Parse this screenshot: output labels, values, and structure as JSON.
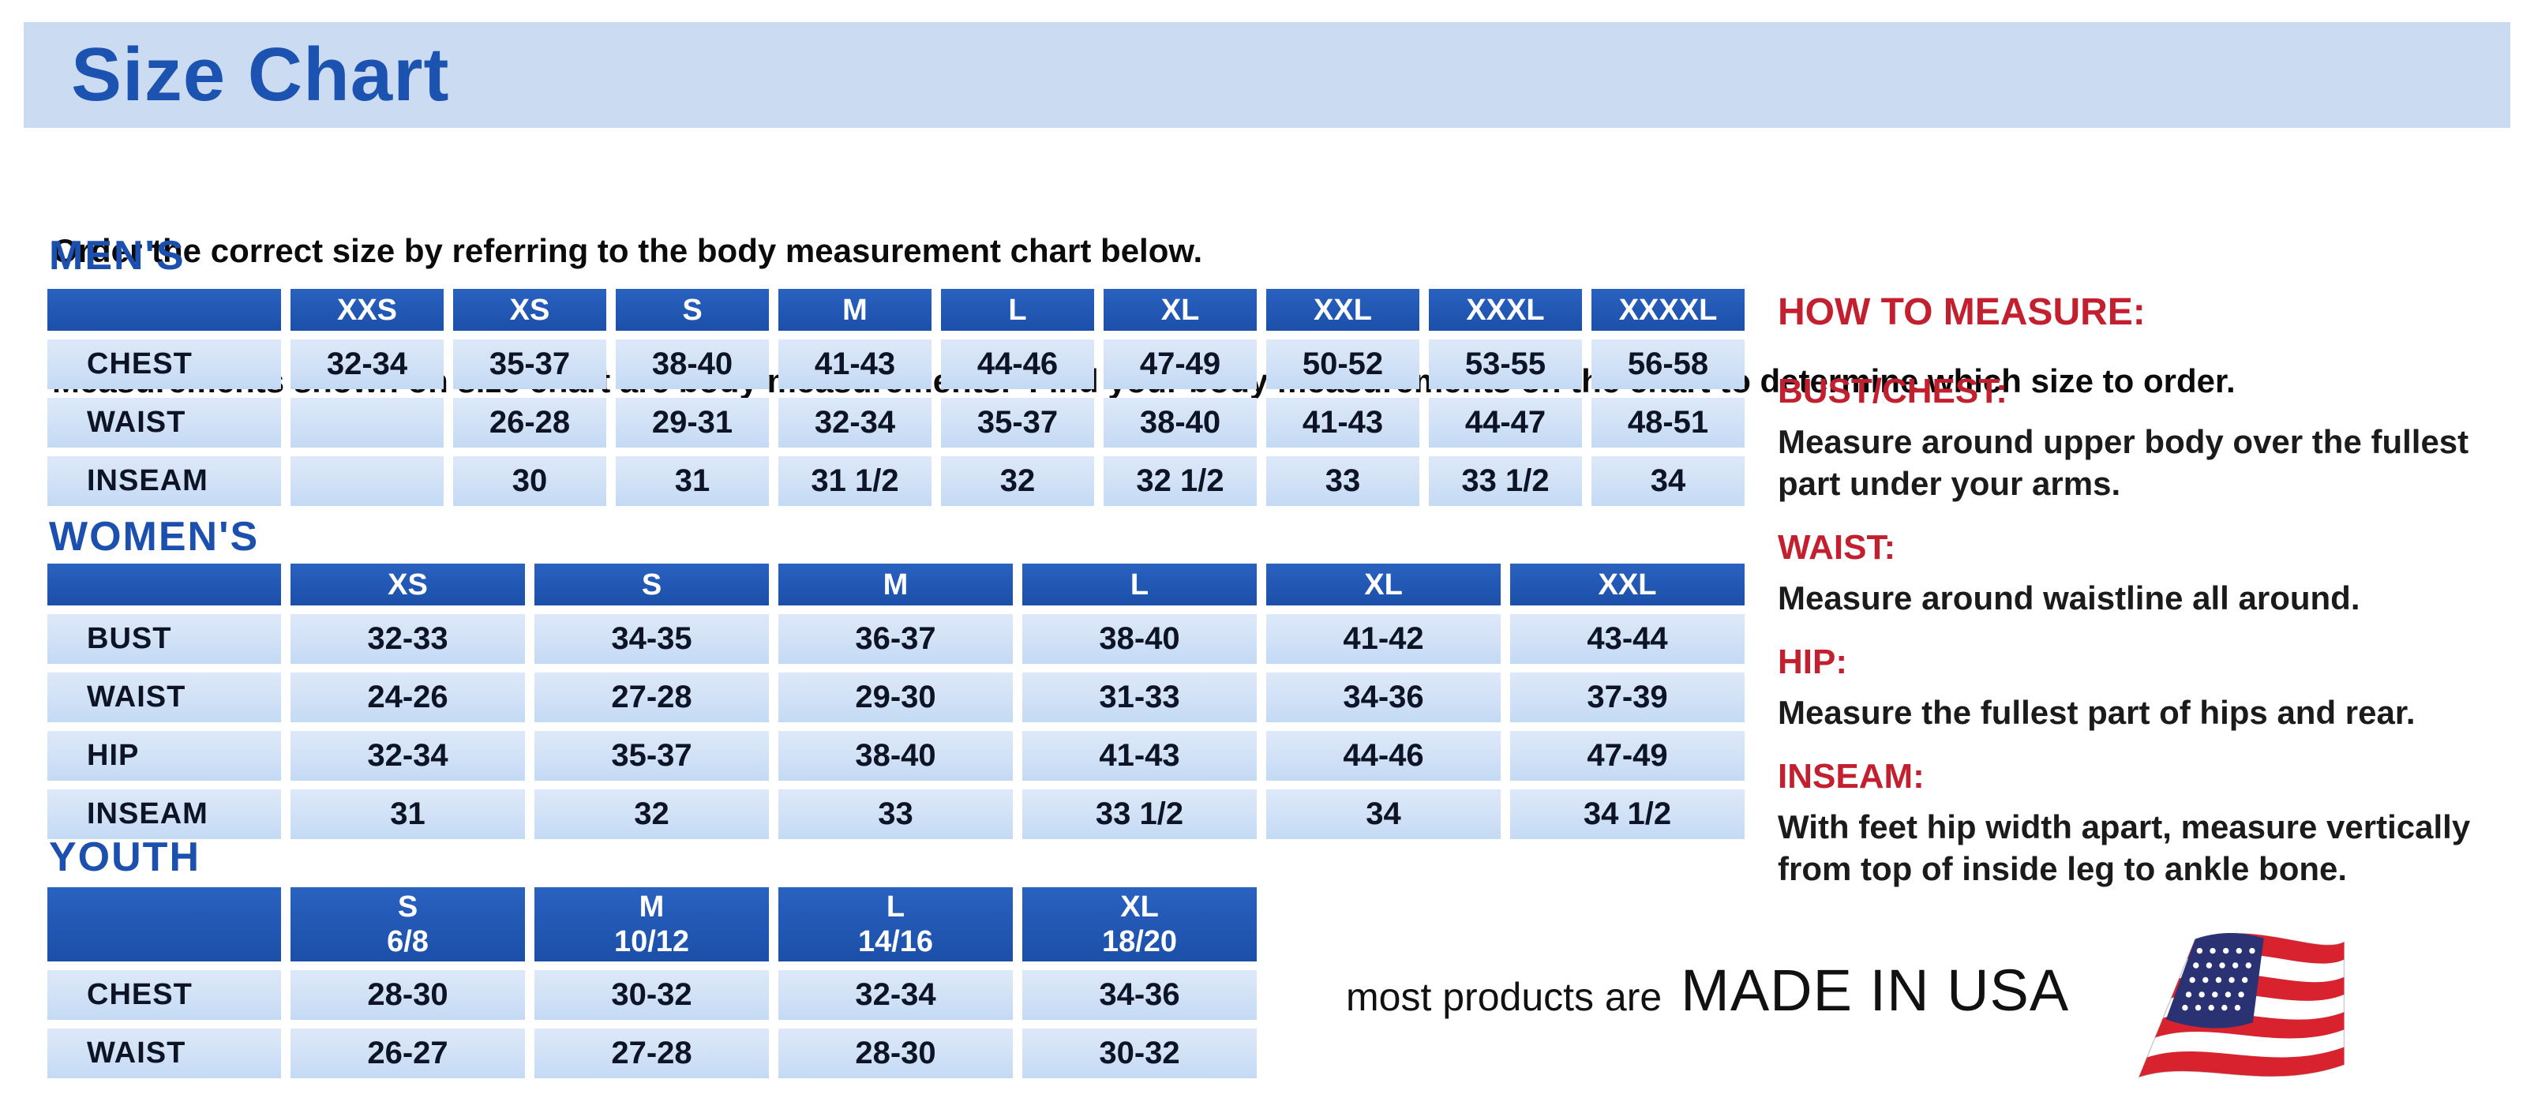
{
  "page": {
    "title": "Size Chart",
    "intro_line1": "Order the correct size by referring to the body measurement chart below.",
    "intro_line2": "Measurements shown on size chart are body measurements.  Find your body measurements on the chart to determine which size to order."
  },
  "colors": {
    "banner_bg": "#cbdcf2",
    "title_blue": "#1c53b0",
    "header_cell_blue": "#1e55ae",
    "cell_light_blue": "#c9def5",
    "heading_red": "#c3202f",
    "flag_red": "#d8222e",
    "flag_navy": "#2b3273"
  },
  "tables": {
    "mens": {
      "section_label": "MEN'S",
      "header": [
        "XXS",
        "XS",
        "S",
        "M",
        "L",
        "XL",
        "XXL",
        "XXXL",
        "XXXXL"
      ],
      "rows": [
        {
          "label": "CHEST",
          "cells": [
            "32-34",
            "35-37",
            "38-40",
            "41-43",
            "44-46",
            "47-49",
            "50-52",
            "53-55",
            "56-58"
          ]
        },
        {
          "label": "WAIST",
          "cells": [
            "",
            "26-28",
            "29-31",
            "32-34",
            "35-37",
            "38-40",
            "41-43",
            "44-47",
            "48-51"
          ]
        },
        {
          "label": "INSEAM",
          "cells": [
            "",
            "30",
            "31",
            "31 1/2",
            "32",
            "32 1/2",
            "33",
            "33 1/2",
            "34"
          ]
        }
      ]
    },
    "womens": {
      "section_label": "WOMEN'S",
      "header": [
        "XS",
        "S",
        "M",
        "L",
        "XL",
        "XXL"
      ],
      "rows": [
        {
          "label": "BUST",
          "cells": [
            "32-33",
            "34-35",
            "36-37",
            "38-40",
            "41-42",
            "43-44"
          ]
        },
        {
          "label": "WAIST",
          "cells": [
            "24-26",
            "27-28",
            "29-30",
            "31-33",
            "34-36",
            "37-39"
          ]
        },
        {
          "label": "HIP",
          "cells": [
            "32-34",
            "35-37",
            "38-40",
            "41-43",
            "44-46",
            "47-49"
          ]
        },
        {
          "label": "INSEAM",
          "cells": [
            "31",
            "32",
            "33",
            "33 1/2",
            "34",
            "34 1/2"
          ]
        }
      ]
    },
    "youth": {
      "section_label": "YOUTH",
      "header": [
        "S\n6/8",
        "M\n10/12",
        "L\n14/16",
        "XL\n18/20"
      ],
      "rows": [
        {
          "label": "CHEST",
          "cells": [
            "28-30",
            "30-32",
            "32-34",
            "34-36"
          ]
        },
        {
          "label": "WAIST",
          "cells": [
            "26-27",
            "27-28",
            "28-30",
            "30-32"
          ]
        }
      ]
    }
  },
  "how_to_measure": {
    "title": "HOW TO MEASURE:",
    "items": [
      {
        "label": "BUST/CHEST:",
        "text": "Measure around upper body over the fullest part under your arms."
      },
      {
        "label": "WAIST:",
        "text": "Measure around waistline all around."
      },
      {
        "label": "HIP:",
        "text": "Measure the fullest part of hips and rear."
      },
      {
        "label": "INSEAM:",
        "text": "With feet hip width apart, measure vertically from top of inside leg to ankle bone."
      }
    ]
  },
  "footer": {
    "made_in_prefix": "most products are",
    "made_in": "MADE IN USA"
  }
}
